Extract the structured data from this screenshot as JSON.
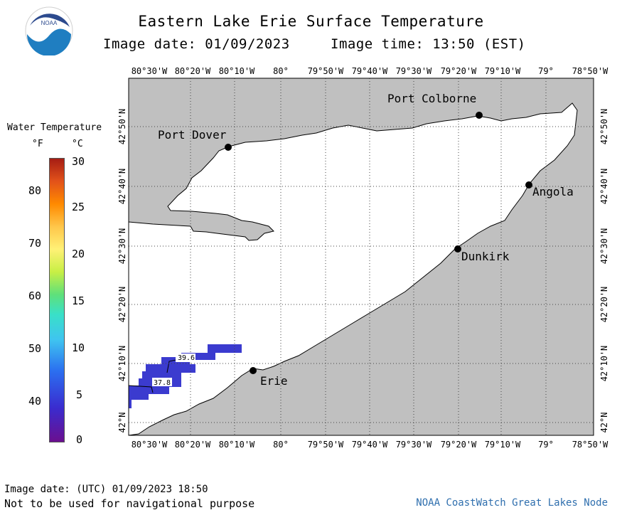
{
  "header": {
    "title": "Eastern Lake Erie Surface Temperature",
    "image_date": "Image date: 01/09/2023",
    "image_time": "Image time: 13:50 (EST)"
  },
  "logo": {
    "text": "NOAA"
  },
  "axes": {
    "lon_top": [
      "80°30'W",
      "80°20'W",
      "80°10'W",
      "80°",
      "79°50'W",
      "79°40'W",
      "79°30'W",
      "79°20'W",
      "79°10'W",
      "79°",
      "78°50'W"
    ],
    "lon_bottom": [
      "80°30'W",
      "80°20'W",
      "80°10'W",
      "80°",
      "79°50'W",
      "79°40'W",
      "79°30'W",
      "79°20'W",
      "79°10'W",
      "79°",
      "78°50'W"
    ],
    "lat_left": [
      "42°50'N",
      "42°40'N",
      "42°30'N",
      "42°20'N",
      "42°10'N",
      "42°N"
    ],
    "lat_right": [
      "42°50'N",
      "42°40'N",
      "42°30'N",
      "42°20'N",
      "42°10'N",
      "42°N"
    ]
  },
  "places": [
    {
      "name": "Port Colborne"
    },
    {
      "name": "Port Dover"
    },
    {
      "name": "Angola"
    },
    {
      "name": "Dunkirk"
    },
    {
      "name": "Erie"
    }
  ],
  "isotherms": [
    "39.6",
    "37.8"
  ],
  "legend": {
    "title": "Water Temperature",
    "unit_f": "°F",
    "unit_c": "°C",
    "ticks_f": [
      "80",
      "70",
      "60",
      "50",
      "40"
    ],
    "ticks_c": [
      "30",
      "25",
      "20",
      "15",
      "10",
      "5",
      "0"
    ]
  },
  "footer": {
    "utc_date": "Image date: (UTC) 01/09/2023  18:50",
    "note": "Not to be used for navigational purpose",
    "credit": "NOAA CoastWatch Great Lakes Node"
  },
  "colors": {
    "land": "#c0c0c0",
    "water": "#ffffff",
    "cold_water": "#3b3bcf",
    "accent": "#2f6fae"
  }
}
